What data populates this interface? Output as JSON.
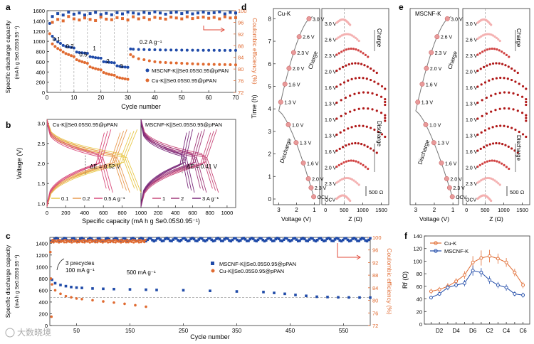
{
  "watermark": "大数晓境",
  "colors": {
    "mscnf": "#1f4aa8",
    "cu": "#e06a30",
    "ce_red": "#e04a3a",
    "yellow": "#e8c84a",
    "orange": "#e89a50",
    "pink": "#d84a7a",
    "purple": "#7a2a7a",
    "eis_light": "#f4b0b0",
    "eis_dark": "#b01818",
    "grey": "#888888"
  },
  "panels": {
    "a": {
      "label": "a",
      "ylabel_line1": "Specific discharge capacity",
      "ylabel_line2": "(mA h g Se0.05S0.95⁻¹)",
      "y2label": "Coulombic efficiency (%)",
      "xlabel": "Cycle number",
      "xticks": [
        "0",
        "10",
        "20",
        "30",
        "40",
        "50",
        "60",
        "70"
      ],
      "yticks": [
        "0",
        "200",
        "400",
        "600",
        "800",
        "1000",
        "1200",
        "1400",
        "1600"
      ],
      "y2ticks": [
        "72",
        "76",
        "80",
        "84",
        "88",
        "92",
        "96",
        "100"
      ],
      "rate_labels": [
        "0.1",
        "0.2",
        "0.5",
        "1",
        "2",
        "3"
      ],
      "rate_02": "0.2 A g⁻¹",
      "legend": [
        "MSCNF-K||Se0.05S0.95@pPAN",
        "Cu-K||Se0.05S0.95@pPAN"
      ]
    },
    "b": {
      "label": "b",
      "ylabel": "Voltage (V)",
      "xlabel": "Specific capacity (mA h g Se0.05S0.95⁻¹)",
      "yticks": [
        "1.0",
        "1.5",
        "2.0",
        "2.5",
        "3.0"
      ],
      "left_title": "Cu-K||Se0.05S0.95@pPAN",
      "right_title": "MSCNF-K||Se0.05S0.95@pPAN",
      "left_dE": "ΔE = 0.52 V",
      "right_dE": "ΔE = 0.41 V",
      "left_xticks": [
        "0",
        "200",
        "400",
        "600",
        "800",
        "1000"
      ],
      "right_xticks": [
        "200",
        "400",
        "600",
        "800",
        "1000"
      ],
      "left_legend": [
        "0.1",
        "0.2",
        "0.5 A g⁻¹"
      ],
      "right_legend": [
        "1",
        "2",
        "3 A g⁻¹"
      ]
    },
    "c": {
      "label": "c",
      "ylabel_line1": "Specific discharge capacity",
      "ylabel_line2": "(mA h g Se0.05S0.95⁻¹)",
      "y2label": "Coulombic efficiency (%)",
      "xlabel": "Cycle number",
      "xticks": [
        "50",
        "150",
        "250",
        "350",
        "450",
        "550"
      ],
      "yticks": [
        "0",
        "200",
        "400",
        "600",
        "800",
        "1000",
        "1200",
        "1400"
      ],
      "y2ticks": [
        "72",
        "76",
        "80",
        "84",
        "88",
        "92",
        "96",
        "100"
      ],
      "precycle_line1": "3 precycles",
      "precycle_line2": "100 mA g⁻¹",
      "rate": "500 mA g⁻¹",
      "legend": [
        "MSCNF-K||Se0.05S0.95@pPAN",
        "Cu-K||Se0.05S0.95@pPAN"
      ]
    },
    "d": {
      "label": "d",
      "title": "Cu-K",
      "ylabel": "Time (h)",
      "xlabel_left": "Voltage (V)",
      "xlabel_right": "Z (Ω)",
      "yticks": [
        "0",
        "1",
        "2",
        "3",
        "4",
        "5",
        "6",
        "7",
        "8"
      ],
      "vticks": [
        "3",
        "2",
        "1"
      ],
      "zticks": [
        "0",
        "500",
        "1000",
        "1500"
      ],
      "volt_labels": [
        "3.0 V",
        "2.6 V",
        "2.3 V",
        "2.0 V",
        "1.6 V",
        "1.3 V",
        "1.0 V",
        "1.3 V",
        "1.6 V",
        "2.0 V",
        "2.3 V",
        "OCV"
      ],
      "eis_labels": [
        "3.0 V",
        "2.6 V",
        "2.3 V",
        "2.0 V",
        "1.6 V",
        "1.3 V",
        "1.0 V",
        "1.3 V",
        "1.6 V",
        "2.0 V",
        "2.3 V",
        "OCV"
      ],
      "charge": "Charge",
      "discharge": "Discharge",
      "scale": "500 Ω"
    },
    "e": {
      "label": "e",
      "title": "MSCNF-K",
      "ylabel": "Time (h)",
      "xlabel_left": "Voltage (V)",
      "xlabel_right": "Z (Ω)",
      "vticks": [
        "3",
        "2",
        "1"
      ],
      "zticks": [
        "0",
        "500",
        "1000",
        "1500"
      ],
      "volt_labels": [
        "3.0 V",
        "2.6 V",
        "2.3 V",
        "2.0 V",
        "1.6 V",
        "1.3 V",
        "1.0 V",
        "1.3 V",
        "1.6 V",
        "2.0 V",
        "2.3 V",
        "OCV"
      ],
      "eis_labels": [
        "3.0 V",
        "2.6 V",
        "2.3 V",
        "2.0 V",
        "1.6 V",
        "1.3 V",
        "1.0 V",
        "1.3 V",
        "1.6 V",
        "2.0 V",
        "2.3 V",
        "OCV"
      ],
      "charge": "Charge",
      "discharge": "Discharge",
      "scale": "500 Ω"
    },
    "f": {
      "label": "f",
      "ylabel": "Rf (Ω)",
      "xticks": [
        "D2",
        "D4",
        "D6",
        "C2",
        "C4",
        "C6"
      ],
      "yticks": [
        "0",
        "20",
        "40",
        "60",
        "80",
        "100",
        "120",
        "140"
      ],
      "legend": [
        "Cu-K",
        "MSCNF-K"
      ]
    }
  },
  "chart_data": [
    {
      "panel": "a",
      "type": "scatter",
      "xlim": [
        0,
        70
      ],
      "ylim": [
        0,
        1600
      ],
      "y2lim": [
        72,
        100
      ],
      "series": [
        {
          "name": "MSCNF-K||Se0.05S0.95@pPAN",
          "axis": "left",
          "x": [
            1,
            2,
            3,
            4,
            5,
            6,
            7,
            8,
            9,
            10,
            11,
            12,
            13,
            14,
            15,
            16,
            17,
            18,
            19,
            20,
            21,
            22,
            23,
            24,
            25,
            26,
            27,
            28,
            29,
            30,
            31,
            32,
            34,
            36,
            38,
            40,
            42,
            44,
            46,
            48,
            50,
            52,
            54,
            56,
            58,
            60,
            62,
            64,
            66,
            68,
            70
          ],
          "values": [
            1350,
            1100,
            1040,
            990,
            960,
            920,
            900,
            890,
            880,
            870,
            790,
            780,
            775,
            770,
            765,
            700,
            690,
            680,
            675,
            670,
            600,
            595,
            590,
            585,
            580,
            520,
            510,
            500,
            495,
            490,
            850,
            845,
            840,
            838,
            835,
            835,
            832,
            830,
            830,
            828,
            828,
            826,
            826,
            825,
            825,
            824,
            824,
            823,
            823,
            822,
            822
          ]
        },
        {
          "name": "Cu-K||Se0.05S0.95@pPAN",
          "axis": "left",
          "x": [
            1,
            2,
            3,
            4,
            5,
            6,
            7,
            8,
            9,
            10,
            11,
            12,
            13,
            14,
            15,
            16,
            17,
            18,
            19,
            20,
            21,
            22,
            23,
            24,
            25,
            26,
            27,
            28,
            29,
            30,
            31,
            32,
            34,
            36,
            38,
            40,
            42,
            44,
            46,
            48,
            50,
            52,
            54,
            56,
            58,
            60,
            62,
            64,
            66,
            68,
            70
          ],
          "values": [
            1150,
            950,
            900,
            860,
            830,
            790,
            760,
            740,
            720,
            700,
            640,
            620,
            600,
            585,
            570,
            500,
            480,
            465,
            450,
            440,
            390,
            370,
            355,
            345,
            335,
            300,
            285,
            275,
            265,
            255,
            740,
            700,
            660,
            640,
            620,
            600,
            590,
            585,
            580,
            575,
            570,
            565,
            560,
            555,
            552,
            550,
            548,
            546,
            544,
            542,
            540
          ]
        },
        {
          "name": "MSCNF-K CE",
          "axis": "right",
          "x": [
            2,
            4,
            6,
            8,
            10,
            12,
            14,
            16,
            18,
            20,
            22,
            24,
            26,
            28,
            30,
            32,
            34,
            36,
            38,
            40,
            42,
            44,
            46,
            48,
            50,
            52,
            54,
            56,
            58,
            60,
            62,
            64,
            66,
            68,
            70
          ],
          "values": [
            98,
            99,
            98.5,
            99.5,
            98.8,
            99.2,
            98.5,
            99,
            99.4,
            98.7,
            99.1,
            98.6,
            99.3,
            98.9,
            99.5,
            99.2,
            98.9,
            99.4,
            99.1,
            99.6,
            99.2,
            98.8,
            99.3,
            99.5,
            99,
            99.4,
            98.9,
            99.2,
            99.5,
            99.1,
            99.3,
            99.6,
            98.9,
            99.4,
            99.2
          ]
        },
        {
          "name": "Cu-K CE",
          "axis": "right",
          "x": [
            2,
            4,
            6,
            8,
            10,
            12,
            14,
            16,
            18,
            20,
            22,
            24,
            26,
            28,
            30,
            32,
            34,
            36,
            38,
            40,
            42,
            44,
            46,
            48,
            50,
            52,
            54,
            56,
            58,
            60,
            62,
            64,
            66,
            68,
            70
          ],
          "values": [
            96,
            97,
            96.5,
            98,
            97.2,
            96.8,
            97.5,
            97,
            96.6,
            97.8,
            97.1,
            96.9,
            97.6,
            97.3,
            96.8,
            97.9,
            97.2,
            97.6,
            97.0,
            97.7,
            97.4,
            97.1,
            97.8,
            97.5,
            97.2,
            97.9,
            97.3,
            97.6,
            97.8,
            97.4,
            97.7,
            97.2,
            97.9,
            97.5,
            97.6
          ]
        }
      ]
    },
    {
      "panel": "b",
      "type": "line",
      "ylim": [
        0.9,
        3.1
      ],
      "left": {
        "xlim": [
          0,
          1000
        ],
        "series": [
          {
            "name": "0.1",
            "discharge_end": 1000,
            "charge_end": 960
          },
          {
            "name": "0.2",
            "discharge_end": 880,
            "charge_end": 850
          },
          {
            "name": "0.5 A g⁻¹",
            "discharge_end": 700,
            "charge_end": 680
          }
        ]
      },
      "right": {
        "xlim": [
          0,
          1100
        ],
        "series": [
          {
            "name": "1",
            "discharge_end": 900,
            "charge_end": 880
          },
          {
            "name": "2",
            "discharge_end": 760,
            "charge_end": 740
          },
          {
            "name": "3 A g⁻¹",
            "discharge_end": 620,
            "charge_end": 600
          }
        ]
      }
    },
    {
      "panel": "c",
      "type": "scatter",
      "xlim": [
        0,
        600
      ],
      "ylim": [
        0,
        1500
      ],
      "y2lim": [
        72,
        100
      ],
      "series": [
        {
          "name": "MSCNF-K||Se0.05S0.95@pPAN",
          "axis": "left",
          "x": [
            4,
            10,
            20,
            30,
            40,
            50,
            60,
            80,
            100,
            120,
            150,
            180,
            200,
            250,
            300,
            350,
            400,
            420,
            440,
            460,
            480,
            500,
            520,
            540,
            560,
            580,
            600
          ],
          "values": [
            780,
            720,
            690,
            670,
            655,
            645,
            640,
            630,
            625,
            620,
            615,
            610,
            605,
            600,
            590,
            580,
            570,
            555,
            540,
            520,
            505,
            490,
            485,
            480,
            478,
            476,
            475
          ]
        },
        {
          "name": "Cu-K||Se0.05S0.95@pPAN",
          "axis": "left",
          "x": [
            4,
            10,
            20,
            30,
            40,
            50,
            60,
            80,
            100,
            120,
            140,
            160,
            180
          ],
          "values": [
            700,
            600,
            540,
            500,
            480,
            460,
            450,
            430,
            410,
            390,
            370,
            345,
            320
          ]
        },
        {
          "name": "MSCNF-K CE",
          "axis": "right",
          "mean": 99.3
        },
        {
          "name": "Cu-K CE",
          "axis": "right",
          "mean": 98.8
        }
      ]
    },
    {
      "panel": "f",
      "type": "line",
      "categories": [
        "D1",
        "D2",
        "D3",
        "D4",
        "D5",
        "D6",
        "C1",
        "C2",
        "C3",
        "C4",
        "C5",
        "C6"
      ],
      "ylim": [
        0,
        140
      ],
      "series": [
        {
          "name": "Cu-K",
          "values": [
            52,
            55,
            60,
            68,
            78,
            98,
            105,
            108,
            104,
            98,
            82,
            62
          ],
          "errors": [
            4,
            4,
            5,
            5,
            6,
            10,
            12,
            10,
            8,
            7,
            6,
            5
          ]
        },
        {
          "name": "MSCNF-K",
          "values": [
            42,
            48,
            58,
            62,
            65,
            85,
            82,
            70,
            62,
            58,
            48,
            46
          ],
          "errors": [
            3,
            3,
            4,
            4,
            5,
            8,
            7,
            6,
            5,
            5,
            4,
            4
          ]
        }
      ]
    }
  ]
}
